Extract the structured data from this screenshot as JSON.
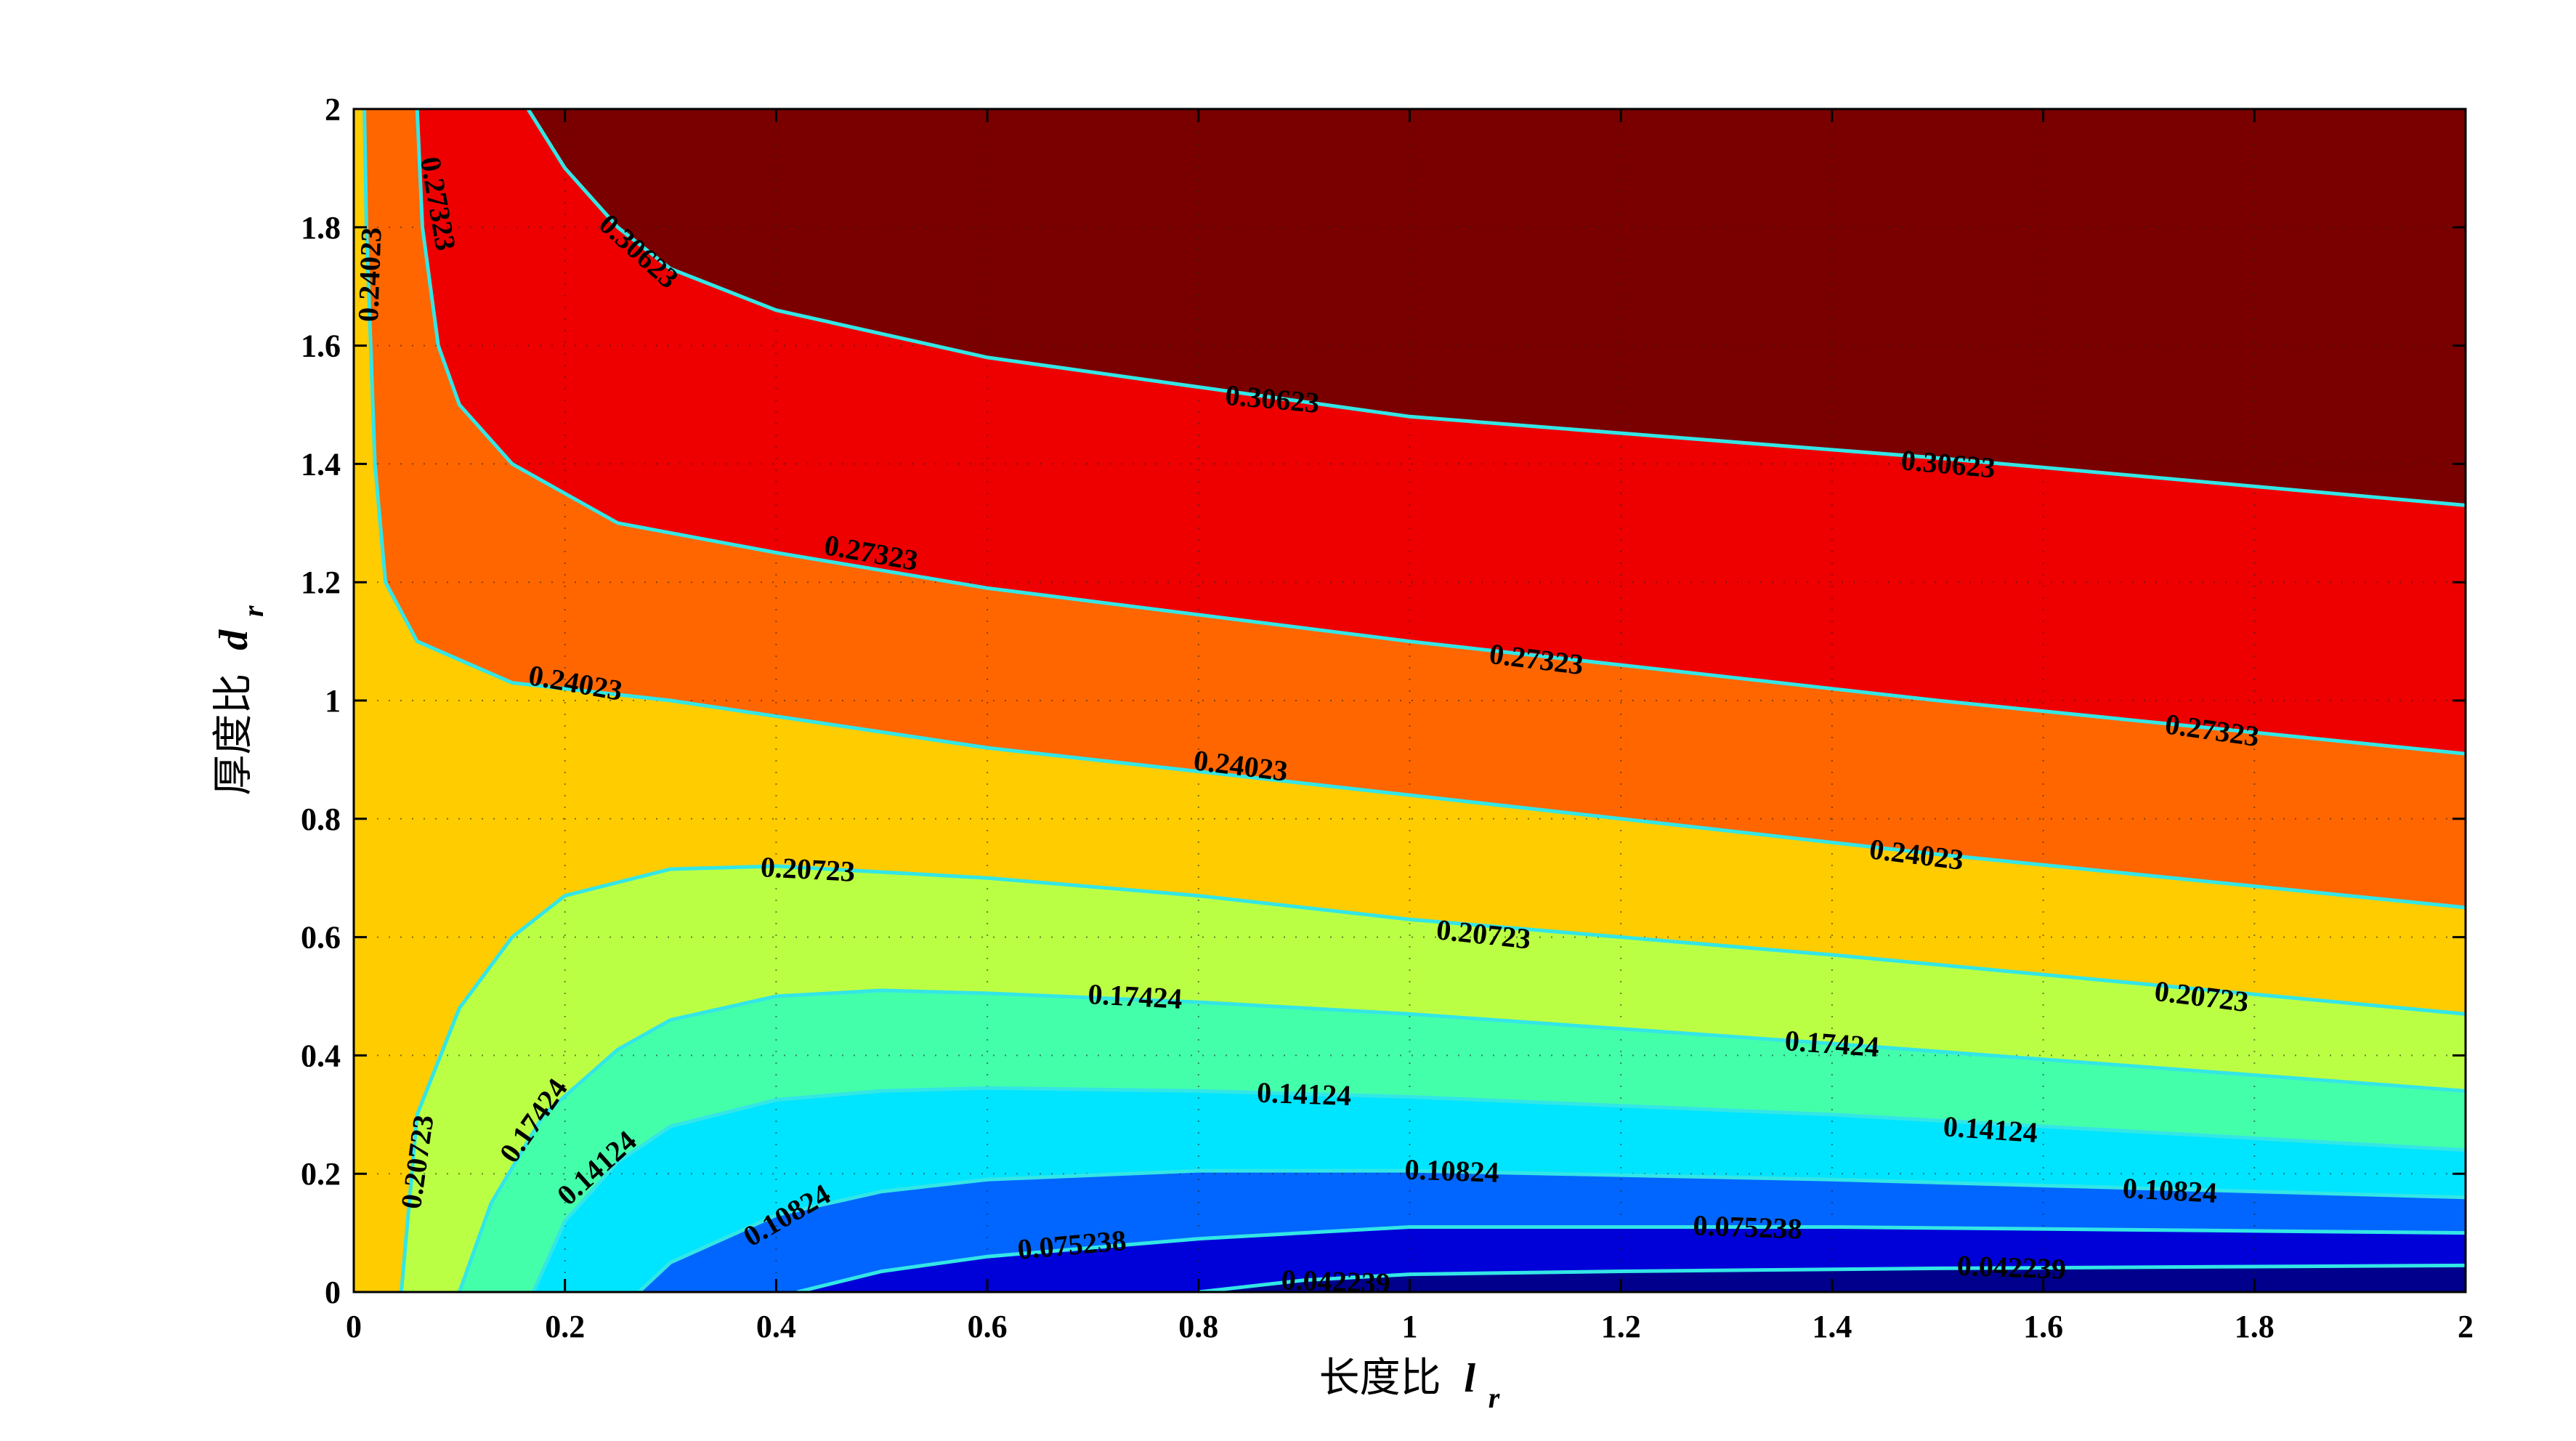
{
  "chart_data": {
    "type": "contour",
    "title": "",
    "xlabel": "长度比",
    "xlabel_symbol": "l",
    "xlabel_subscript": "r",
    "ylabel": "厚度比",
    "ylabel_symbol": "d",
    "ylabel_subscript": "r",
    "xlim": [
      0,
      2
    ],
    "ylim": [
      0,
      2
    ],
    "grid": true,
    "x_ticks": [
      "0",
      "0.2",
      "0.4",
      "0.6",
      "0.8",
      "1",
      "1.2",
      "1.4",
      "1.6",
      "1.8",
      "2"
    ],
    "y_ticks": [
      "0",
      "0.2",
      "0.4",
      "0.6",
      "0.8",
      "1",
      "1.2",
      "1.4",
      "1.6",
      "1.8",
      "2"
    ],
    "levels": [
      {
        "value": 0.042239,
        "label": "0.042239",
        "color": "#0000d8",
        "points": [
          [
            0.8,
            0
          ],
          [
            0.9,
            0.02
          ],
          [
            1.0,
            0.03
          ],
          [
            1.2,
            0.035
          ],
          [
            1.5,
            0.04
          ],
          [
            2.0,
            0.045
          ]
        ]
      },
      {
        "value": 0.075238,
        "label": "0.075238",
        "color": "#0066ff",
        "points": [
          [
            0.42,
            0
          ],
          [
            0.5,
            0.035
          ],
          [
            0.6,
            0.06
          ],
          [
            0.8,
            0.09
          ],
          [
            1.0,
            0.11
          ],
          [
            1.4,
            0.11
          ],
          [
            2.0,
            0.1
          ]
        ]
      },
      {
        "value": 0.10824,
        "label": "0.10824",
        "color": "#00e5ff",
        "points": [
          [
            0.27,
            0
          ],
          [
            0.3,
            0.05
          ],
          [
            0.4,
            0.13
          ],
          [
            0.5,
            0.17
          ],
          [
            0.6,
            0.19
          ],
          [
            0.8,
            0.205
          ],
          [
            1.0,
            0.205
          ],
          [
            1.4,
            0.19
          ],
          [
            2.0,
            0.16
          ]
        ]
      },
      {
        "value": 0.14124,
        "label": "0.14124",
        "color": "#44ffaa",
        "points": [
          [
            0.17,
            0
          ],
          [
            0.2,
            0.12
          ],
          [
            0.25,
            0.22
          ],
          [
            0.3,
            0.28
          ],
          [
            0.4,
            0.325
          ],
          [
            0.5,
            0.34
          ],
          [
            0.6,
            0.345
          ],
          [
            0.8,
            0.34
          ],
          [
            1.0,
            0.33
          ],
          [
            1.4,
            0.3
          ],
          [
            2.0,
            0.24
          ]
        ]
      },
      {
        "value": 0.17424,
        "label": "0.17424",
        "color": "#bbff44",
        "points": [
          [
            0.1,
            0
          ],
          [
            0.13,
            0.15
          ],
          [
            0.18,
            0.3
          ],
          [
            0.25,
            0.41
          ],
          [
            0.3,
            0.46
          ],
          [
            0.4,
            0.5
          ],
          [
            0.5,
            0.51
          ],
          [
            0.6,
            0.505
          ],
          [
            0.8,
            0.49
          ],
          [
            1.0,
            0.47
          ],
          [
            1.4,
            0.42
          ],
          [
            2.0,
            0.34
          ]
        ]
      },
      {
        "value": 0.20723,
        "label": "0.20723",
        "color": "#ffcc00",
        "points": [
          [
            0.045,
            0
          ],
          [
            0.06,
            0.3
          ],
          [
            0.1,
            0.48
          ],
          [
            0.15,
            0.6
          ],
          [
            0.2,
            0.67
          ],
          [
            0.3,
            0.715
          ],
          [
            0.4,
            0.72
          ],
          [
            0.6,
            0.7
          ],
          [
            0.8,
            0.67
          ],
          [
            1.0,
            0.63
          ],
          [
            1.4,
            0.57
          ],
          [
            2.0,
            0.47
          ]
        ]
      },
      {
        "value": 0.24023,
        "label": "0.24023",
        "color": "#ff6600",
        "points": [
          [
            0.01,
            2.0
          ],
          [
            0.012,
            1.8
          ],
          [
            0.016,
            1.6
          ],
          [
            0.02,
            1.4
          ],
          [
            0.03,
            1.2
          ],
          [
            0.06,
            1.1
          ],
          [
            0.15,
            1.03
          ],
          [
            0.3,
            1.0
          ],
          [
            0.6,
            0.92
          ],
          [
            1.0,
            0.84
          ],
          [
            1.5,
            0.74
          ],
          [
            2.0,
            0.65
          ]
        ]
      },
      {
        "value": 0.27323,
        "label": "0.27323",
        "color": "#ee0000",
        "points": [
          [
            0.06,
            2.0
          ],
          [
            0.065,
            1.8
          ],
          [
            0.08,
            1.6
          ],
          [
            0.1,
            1.5
          ],
          [
            0.15,
            1.4
          ],
          [
            0.25,
            1.3
          ],
          [
            0.4,
            1.25
          ],
          [
            0.6,
            1.19
          ],
          [
            1.0,
            1.1
          ],
          [
            1.5,
            1.0
          ],
          [
            2.0,
            0.91
          ]
        ]
      },
      {
        "value": 0.30623,
        "label": "0.30623",
        "color": "#7a0000",
        "points": [
          [
            0.165,
            2.0
          ],
          [
            0.2,
            1.9
          ],
          [
            0.25,
            1.8
          ],
          [
            0.3,
            1.73
          ],
          [
            0.4,
            1.66
          ],
          [
            0.6,
            1.58
          ],
          [
            0.8,
            1.53
          ],
          [
            1.0,
            1.48
          ],
          [
            1.5,
            1.41
          ],
          [
            2.0,
            1.33
          ]
        ]
      }
    ],
    "base_color": "#00008c",
    "contour_labels": [
      {
        "text": "0.042239",
        "x": 0.93,
        "y": 0.018,
        "angle": 2
      },
      {
        "text": "0.042239",
        "x": 1.57,
        "y": 0.042,
        "angle": 2
      },
      {
        "text": "0.075238",
        "x": 0.68,
        "y": 0.08,
        "angle": -5
      },
      {
        "text": "0.075238",
        "x": 1.32,
        "y": 0.11,
        "angle": 2
      },
      {
        "text": "0.10824",
        "x": 0.41,
        "y": 0.13,
        "angle": -30
      },
      {
        "text": "0.10824",
        "x": 1.04,
        "y": 0.205,
        "angle": 2
      },
      {
        "text": "0.10824",
        "x": 1.72,
        "y": 0.172,
        "angle": 3
      },
      {
        "text": "0.14124",
        "x": 0.23,
        "y": 0.21,
        "angle": -42
      },
      {
        "text": "0.14124",
        "x": 0.9,
        "y": 0.335,
        "angle": 2
      },
      {
        "text": "0.14124",
        "x": 1.55,
        "y": 0.275,
        "angle": 4
      },
      {
        "text": "0.17424",
        "x": 0.17,
        "y": 0.29,
        "angle": -55
      },
      {
        "text": "0.17424",
        "x": 0.74,
        "y": 0.5,
        "angle": 3
      },
      {
        "text": "0.17424",
        "x": 1.4,
        "y": 0.42,
        "angle": 4
      },
      {
        "text": "0.20723",
        "x": 0.06,
        "y": 0.22,
        "angle": -82
      },
      {
        "text": "0.20723",
        "x": 0.43,
        "y": 0.715,
        "angle": 3
      },
      {
        "text": "0.20723",
        "x": 1.07,
        "y": 0.605,
        "angle": 6
      },
      {
        "text": "0.20723",
        "x": 1.75,
        "y": 0.5,
        "angle": 7
      },
      {
        "text": "0.24023",
        "x": 0.015,
        "y": 1.72,
        "angle": -88
      },
      {
        "text": "0.24023",
        "x": 0.21,
        "y": 1.03,
        "angle": 10
      },
      {
        "text": "0.24023",
        "x": 0.84,
        "y": 0.89,
        "angle": 7
      },
      {
        "text": "0.24023",
        "x": 1.48,
        "y": 0.74,
        "angle": 7
      },
      {
        "text": "0.27323",
        "x": 0.08,
        "y": 1.84,
        "angle": 80
      },
      {
        "text": "0.27323",
        "x": 0.49,
        "y": 1.25,
        "angle": 10
      },
      {
        "text": "0.27323",
        "x": 1.12,
        "y": 1.07,
        "angle": 7
      },
      {
        "text": "0.27323",
        "x": 1.76,
        "y": 0.95,
        "angle": 8
      },
      {
        "text": "0.30623",
        "x": 0.27,
        "y": 1.76,
        "angle": 42
      },
      {
        "text": "0.30623",
        "x": 0.87,
        "y": 1.51,
        "angle": 5
      },
      {
        "text": "0.30623",
        "x": 1.51,
        "y": 1.4,
        "angle": 5
      }
    ]
  }
}
